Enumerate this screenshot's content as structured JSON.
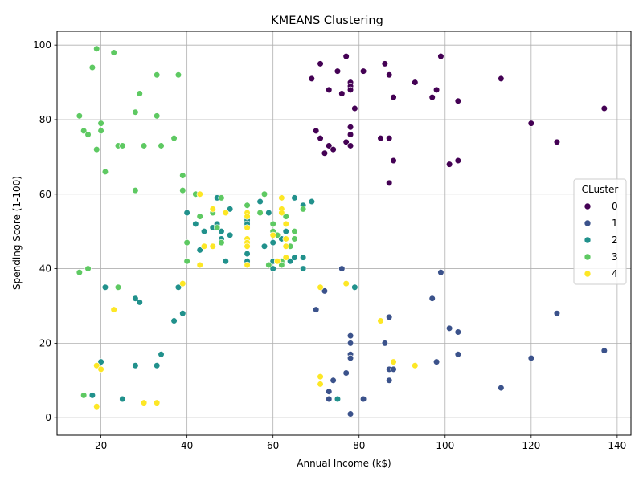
{
  "chart_data": {
    "type": "scatter",
    "title": "KMEANS Clustering",
    "xlabel": "Annual Income (k$)",
    "ylabel": "Spending Score (1-100)",
    "xlim": [
      9.8,
      143.2
    ],
    "ylim": [
      -4.7,
      103.7
    ],
    "xticks": [
      20,
      40,
      60,
      80,
      100,
      120,
      140
    ],
    "yticks": [
      0,
      20,
      40,
      60,
      80,
      100
    ],
    "grid": true,
    "legend": {
      "title": "CLuster",
      "position": "center-right"
    },
    "series": [
      {
        "name": "0",
        "color": "#440154",
        "points": [
          [
            69,
            91
          ],
          [
            70,
            77
          ],
          [
            71,
            95
          ],
          [
            71,
            75
          ],
          [
            72,
            71
          ],
          [
            73,
            88
          ],
          [
            73,
            73
          ],
          [
            74,
            72
          ],
          [
            75,
            93
          ],
          [
            76,
            87
          ],
          [
            77,
            97
          ],
          [
            77,
            74
          ],
          [
            78,
            90
          ],
          [
            78,
            89
          ],
          [
            78,
            88
          ],
          [
            78,
            78
          ],
          [
            78,
            76
          ],
          [
            78,
            73
          ],
          [
            79,
            83
          ],
          [
            81,
            93
          ],
          [
            85,
            75
          ],
          [
            86,
            95
          ],
          [
            87,
            92
          ],
          [
            87,
            75
          ],
          [
            87,
            63
          ],
          [
            88,
            86
          ],
          [
            88,
            69
          ],
          [
            93,
            90
          ],
          [
            97,
            86
          ],
          [
            98,
            88
          ],
          [
            99,
            97
          ],
          [
            101,
            68
          ],
          [
            103,
            85
          ],
          [
            103,
            69
          ],
          [
            113,
            91
          ],
          [
            120,
            79
          ],
          [
            126,
            74
          ],
          [
            137,
            83
          ]
        ]
      },
      {
        "name": "1",
        "color": "#3b528b",
        "points": [
          [
            70,
            29
          ],
          [
            71,
            11
          ],
          [
            72,
            34
          ],
          [
            73,
            5
          ],
          [
            73,
            7
          ],
          [
            74,
            10
          ],
          [
            76,
            40
          ],
          [
            77,
            12
          ],
          [
            78,
            22
          ],
          [
            78,
            20
          ],
          [
            78,
            17
          ],
          [
            78,
            16
          ],
          [
            78,
            1
          ],
          [
            81,
            5
          ],
          [
            86,
            20
          ],
          [
            87,
            27
          ],
          [
            87,
            13
          ],
          [
            87,
            10
          ],
          [
            88,
            13
          ],
          [
            97,
            32
          ],
          [
            98,
            15
          ],
          [
            99,
            39
          ],
          [
            101,
            24
          ],
          [
            103,
            23
          ],
          [
            103,
            17
          ],
          [
            113,
            8
          ],
          [
            120,
            16
          ],
          [
            126,
            28
          ],
          [
            137,
            18
          ]
        ]
      },
      {
        "name": "2",
        "color": "#21918c",
        "points": [
          [
            18,
            6
          ],
          [
            20,
            15
          ],
          [
            21,
            35
          ],
          [
            25,
            5
          ],
          [
            28,
            14
          ],
          [
            28,
            32
          ],
          [
            29,
            31
          ],
          [
            33,
            14
          ],
          [
            34,
            17
          ],
          [
            37,
            26
          ],
          [
            38,
            35
          ],
          [
            39,
            28
          ],
          [
            40,
            55
          ],
          [
            42,
            52
          ],
          [
            43,
            45
          ],
          [
            44,
            50
          ],
          [
            46,
            51
          ],
          [
            47,
            59
          ],
          [
            47,
            52
          ],
          [
            48,
            50
          ],
          [
            48,
            48
          ],
          [
            49,
            42
          ],
          [
            50,
            56
          ],
          [
            50,
            49
          ],
          [
            54,
            53
          ],
          [
            54,
            52
          ],
          [
            54,
            44
          ],
          [
            54,
            42
          ],
          [
            57,
            58
          ],
          [
            58,
            46
          ],
          [
            59,
            55
          ],
          [
            60,
            47
          ],
          [
            60,
            42
          ],
          [
            60,
            40
          ],
          [
            61,
            42
          ],
          [
            62,
            41
          ],
          [
            62,
            48
          ],
          [
            63,
            50
          ],
          [
            63,
            48
          ],
          [
            64,
            42
          ],
          [
            65,
            59
          ],
          [
            65,
            43
          ],
          [
            67,
            57
          ],
          [
            67,
            43
          ],
          [
            67,
            40
          ],
          [
            69,
            58
          ],
          [
            75,
            5
          ],
          [
            79,
            35
          ]
        ]
      },
      {
        "name": "3",
        "color": "#5ec962",
        "points": [
          [
            15,
            39
          ],
          [
            15,
            81
          ],
          [
            16,
            6
          ],
          [
            16,
            77
          ],
          [
            17,
            40
          ],
          [
            17,
            76
          ],
          [
            18,
            94
          ],
          [
            19,
            72
          ],
          [
            19,
            99
          ],
          [
            20,
            77
          ],
          [
            20,
            79
          ],
          [
            21,
            66
          ],
          [
            23,
            98
          ],
          [
            24,
            35
          ],
          [
            24,
            73
          ],
          [
            25,
            73
          ],
          [
            28,
            61
          ],
          [
            28,
            82
          ],
          [
            29,
            87
          ],
          [
            30,
            73
          ],
          [
            33,
            92
          ],
          [
            33,
            81
          ],
          [
            34,
            73
          ],
          [
            37,
            75
          ],
          [
            38,
            92
          ],
          [
            39,
            61
          ],
          [
            39,
            65
          ],
          [
            40,
            47
          ],
          [
            40,
            42
          ],
          [
            42,
            60
          ],
          [
            43,
            54
          ],
          [
            46,
            55
          ],
          [
            47,
            51
          ],
          [
            48,
            59
          ],
          [
            48,
            47
          ],
          [
            54,
            57
          ],
          [
            54,
            55
          ],
          [
            57,
            55
          ],
          [
            58,
            60
          ],
          [
            59,
            41
          ],
          [
            60,
            52
          ],
          [
            60,
            50
          ],
          [
            61,
            49
          ],
          [
            62,
            42
          ],
          [
            62,
            41
          ],
          [
            63,
            54
          ],
          [
            63,
            46
          ],
          [
            64,
            46
          ],
          [
            65,
            50
          ],
          [
            65,
            48
          ],
          [
            67,
            56
          ]
        ]
      },
      {
        "name": "4",
        "color": "#fde725",
        "points": [
          [
            19,
            3
          ],
          [
            19,
            14
          ],
          [
            20,
            13
          ],
          [
            23,
            29
          ],
          [
            30,
            4
          ],
          [
            33,
            4
          ],
          [
            39,
            36
          ],
          [
            43,
            41
          ],
          [
            43,
            60
          ],
          [
            44,
            46
          ],
          [
            46,
            46
          ],
          [
            46,
            56
          ],
          [
            49,
            55
          ],
          [
            54,
            55
          ],
          [
            54,
            54
          ],
          [
            54,
            51
          ],
          [
            54,
            48
          ],
          [
            54,
            47
          ],
          [
            54,
            46
          ],
          [
            54,
            41
          ],
          [
            60,
            49
          ],
          [
            61,
            42
          ],
          [
            62,
            59
          ],
          [
            62,
            56
          ],
          [
            62,
            55
          ],
          [
            63,
            52
          ],
          [
            63,
            48
          ],
          [
            63,
            46
          ],
          [
            63,
            43
          ],
          [
            71,
            35
          ],
          [
            71,
            11
          ],
          [
            71,
            9
          ],
          [
            77,
            36
          ],
          [
            85,
            26
          ],
          [
            88,
            15
          ],
          [
            93,
            14
          ]
        ]
      }
    ]
  }
}
